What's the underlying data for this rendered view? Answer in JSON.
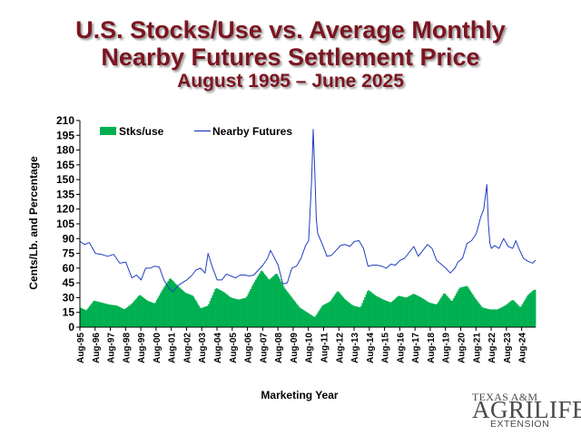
{
  "title": {
    "line1": "U.S. Stocks/Use vs. Average Monthly",
    "line2": "Nearby Futures Settlement Price",
    "line3": "August 1995 – June 2025"
  },
  "logo": {
    "line1": "TEXAS A&M",
    "line2": "AGRILIFE",
    "line3": "EXTENSION"
  },
  "chart_data": {
    "type": "bar+line",
    "title": "U.S. Stocks/Use vs. Average Monthly Nearby Futures Settlement Price",
    "subtitle": "August 1995 – June 2025",
    "xlabel": "Marketing Year",
    "ylabel": "Cents/Lb. and Percentage",
    "ylim": [
      0,
      210
    ],
    "yticks": [
      0,
      15,
      30,
      45,
      60,
      75,
      90,
      105,
      120,
      135,
      150,
      165,
      180,
      195,
      210
    ],
    "xlim": [
      1995.583,
      2025.5
    ],
    "xticks": [
      "Aug-95",
      "Aug-96",
      "Aug-97",
      "Aug-98",
      "Aug-99",
      "Aug-00",
      "Aug-01",
      "Aug-02",
      "Aug-03",
      "Aug-04",
      "Aug-05",
      "Aug-06",
      "Aug-07",
      "Aug-08",
      "Aug-09",
      "Aug-10",
      "Aug-11",
      "Aug-12",
      "Aug-13",
      "Aug-14",
      "Aug-15",
      "Aug-16",
      "Aug-17",
      "Aug-18",
      "Aug-19",
      "Aug-20",
      "Aug-21",
      "Aug-22",
      "Aug-23",
      "Aug-24"
    ],
    "grid": false,
    "legend_position": "top-left",
    "colors": {
      "stocks_use": "#00b050",
      "futures": "#1f3fbf",
      "axis": "#000000"
    },
    "series": [
      {
        "name": "Stks/use",
        "kind": "bar",
        "x": [
          1995.6,
          1996.0,
          1996.5,
          1997.0,
          1997.5,
          1998.0,
          1998.5,
          1999.0,
          1999.5,
          2000.0,
          2000.5,
          2001.0,
          2001.5,
          2002.0,
          2002.5,
          2003.0,
          2003.5,
          2004.0,
          2004.5,
          2005.0,
          2005.5,
          2006.0,
          2006.5,
          2007.0,
          2007.5,
          2008.0,
          2008.5,
          2009.0,
          2009.5,
          2010.0,
          2010.5,
          2011.0,
          2011.5,
          2012.0,
          2012.5,
          2013.0,
          2013.5,
          2014.0,
          2014.5,
          2015.0,
          2015.5,
          2016.0,
          2016.5,
          2017.0,
          2017.5,
          2018.0,
          2018.5,
          2019.0,
          2019.5,
          2020.0,
          2020.5,
          2021.0,
          2021.5,
          2022.0,
          2022.5,
          2023.0,
          2023.5,
          2024.0,
          2024.5,
          2025.0,
          2025.4
        ],
        "values": [
          20,
          17,
          27,
          25,
          23,
          22,
          18,
          24,
          33,
          27,
          24,
          38,
          50,
          42,
          35,
          32,
          19,
          22,
          40,
          36,
          30,
          28,
          30,
          45,
          58,
          48,
          55,
          40,
          30,
          20,
          15,
          10,
          22,
          26,
          37,
          28,
          22,
          20,
          38,
          32,
          28,
          25,
          32,
          30,
          34,
          30,
          25,
          23,
          35,
          26,
          40,
          42,
          30,
          20,
          18,
          18,
          22,
          28,
          20,
          33,
          38
        ]
      },
      {
        "name": "Nearby Futures",
        "kind": "line",
        "x": [
          1995.6,
          1995.9,
          1996.2,
          1996.6,
          1997.0,
          1997.4,
          1997.8,
          1998.2,
          1998.6,
          1999.0,
          1999.3,
          1999.6,
          1999.9,
          2000.2,
          2000.5,
          2000.8,
          2001.1,
          2001.4,
          2001.7,
          2002.0,
          2002.3,
          2002.6,
          2002.9,
          2003.2,
          2003.5,
          2003.8,
          2004.0,
          2004.3,
          2004.6,
          2004.9,
          2005.2,
          2005.5,
          2005.8,
          2006.1,
          2006.4,
          2006.7,
          2007.0,
          2007.3,
          2007.6,
          2007.9,
          2008.1,
          2008.3,
          2008.6,
          2008.9,
          2009.2,
          2009.5,
          2009.8,
          2010.1,
          2010.4,
          2010.6,
          2010.8,
          2010.9,
          2011.0,
          2011.1,
          2011.2,
          2011.4,
          2011.6,
          2011.8,
          2012.1,
          2012.4,
          2012.7,
          2013.0,
          2013.3,
          2013.6,
          2013.9,
          2014.2,
          2014.5,
          2014.8,
          2015.1,
          2015.4,
          2015.7,
          2016.0,
          2016.3,
          2016.6,
          2016.9,
          2017.2,
          2017.5,
          2017.8,
          2018.1,
          2018.4,
          2018.7,
          2019.0,
          2019.3,
          2019.6,
          2019.9,
          2020.2,
          2020.4,
          2020.7,
          2021.0,
          2021.3,
          2021.6,
          2021.9,
          2022.1,
          2022.3,
          2022.4,
          2022.5,
          2022.6,
          2022.8,
          2023.1,
          2023.4,
          2023.7,
          2024.0,
          2024.2,
          2024.4,
          2024.7,
          2025.0,
          2025.3,
          2025.5
        ],
        "values": [
          87,
          84,
          86,
          75,
          74,
          72,
          74,
          65,
          66,
          50,
          53,
          48,
          60,
          60,
          62,
          61,
          48,
          40,
          36,
          42,
          45,
          48,
          52,
          58,
          60,
          55,
          75,
          60,
          48,
          48,
          54,
          52,
          50,
          53,
          53,
          52,
          53,
          58,
          63,
          70,
          78,
          72,
          63,
          44,
          45,
          60,
          62,
          70,
          83,
          88,
          150,
          201,
          160,
          110,
          95,
          88,
          80,
          72,
          73,
          78,
          83,
          84,
          82,
          87,
          88,
          80,
          62,
          63,
          63,
          62,
          60,
          64,
          63,
          68,
          70,
          76,
          82,
          72,
          78,
          84,
          80,
          68,
          64,
          60,
          55,
          60,
          66,
          70,
          85,
          88,
          95,
          112,
          120,
          145,
          105,
          85,
          80,
          83,
          80,
          90,
          82,
          80,
          88,
          80,
          70,
          67,
          65,
          68
        ]
      }
    ]
  }
}
